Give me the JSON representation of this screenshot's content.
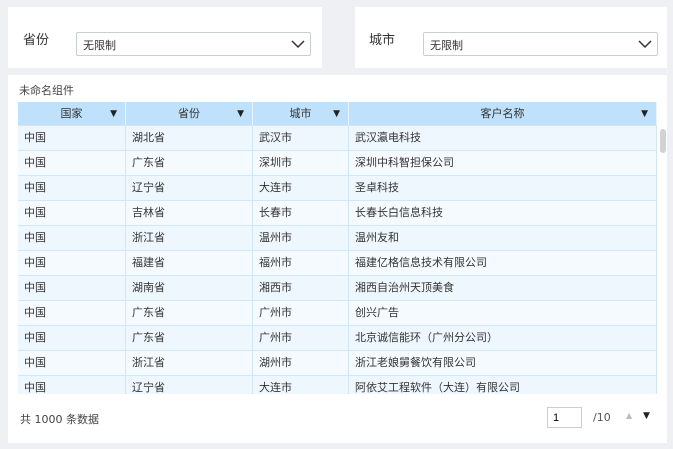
{
  "filters": [
    {
      "label": "省份",
      "value": "无限制"
    },
    {
      "label": "城市",
      "value": "无限制"
    }
  ],
  "table": {
    "title": "未命名组件",
    "columns": [
      "国家",
      "省份",
      "城市",
      "客户名称"
    ],
    "rows": [
      [
        "中国",
        "湖北省",
        "武汉市",
        "武汉瀛电科技"
      ],
      [
        "中国",
        "广东省",
        "深圳市",
        "深圳中科智担保公司"
      ],
      [
        "中国",
        "辽宁省",
        "大连市",
        "圣卓科技"
      ],
      [
        "中国",
        "吉林省",
        "长春市",
        "长春长白信息科技"
      ],
      [
        "中国",
        "浙江省",
        "温州市",
        "温州友和"
      ],
      [
        "中国",
        "福建省",
        "福州市",
        "福建亿格信息技术有限公司"
      ],
      [
        "中国",
        "湖南省",
        "湘西市",
        "湘西自治州天顶美食"
      ],
      [
        "中国",
        "广东省",
        "广州市",
        "创兴广告"
      ],
      [
        "中国",
        "广东省",
        "广州市",
        "北京诚信能环（广州分公司）"
      ],
      [
        "中国",
        "浙江省",
        "湖州市",
        "浙江老娘舅餐饮有限公司"
      ],
      [
        "中国",
        "辽宁省",
        "大连市",
        "阿依艾工程软件（大连）有限公司"
      ]
    ]
  },
  "pagination": {
    "total_text": "共 1000 条数据",
    "current_page": "1",
    "total_pages": "/10"
  }
}
